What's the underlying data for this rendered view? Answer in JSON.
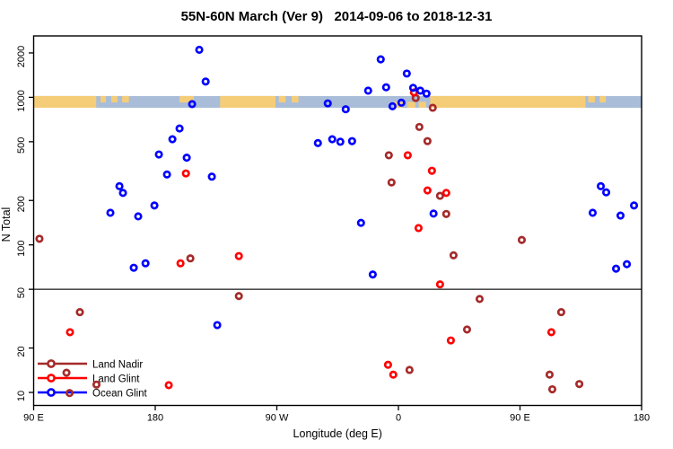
{
  "title": "55N-60N March (Ver 9)   2014-09-06 to 2018-12-31",
  "legend": {
    "items": [
      {
        "label": "Land Nadir",
        "color": "#A52A2A"
      },
      {
        "label": "Land Glint",
        "color": "#FF0000"
      },
      {
        "label": "Ocean Glint",
        "color": "#0000FF"
      }
    ]
  },
  "chart_data": {
    "type": "scatter",
    "title": "55N-60N March (Ver 9)   2014-09-06 to 2018-12-31",
    "xlabel": "Longitude (deg E)",
    "ylabel": "N Total",
    "x_axis": {
      "min": 90,
      "max": 540,
      "ticks": [
        90,
        180,
        270,
        360,
        450,
        540
      ],
      "tick_labels": [
        "90 E",
        "180",
        "90 W",
        "0",
        "90 E",
        "180"
      ],
      "note": "longitude axis wraps: 90E to 180 to 90W to 0 to 90E to 180"
    },
    "y_axis": {
      "scale": "log",
      "min": 8.2,
      "max": 2600,
      "ticks": [
        10,
        20,
        50,
        100,
        200,
        500,
        1000,
        2000
      ],
      "tick_labels": [
        "10",
        "20",
        "50",
        "100",
        "200",
        "500",
        "1000",
        "2000"
      ]
    },
    "reference_line_y": 50,
    "reference_line_color": "#4d4d4d",
    "map_band": {
      "description": "land/ocean strip for 55N-60N drawn across plot near N=900",
      "value_top": 1021,
      "value_bottom": 850,
      "land_color": "#F5CD79",
      "ocean_color": "#A9BDD9",
      "land_segments": [
        {
          "from": 90,
          "to": 136.3,
          "part": "full"
        },
        {
          "from": 139.5,
          "to": 143.5,
          "part": "top"
        },
        {
          "from": 147.5,
          "to": 152,
          "part": "top"
        },
        {
          "from": 155.5,
          "to": 160.5,
          "part": "top"
        },
        {
          "from": 198,
          "to": 208.5,
          "part": "top"
        },
        {
          "from": 228,
          "to": 269,
          "part": "full"
        },
        {
          "from": 271.5,
          "to": 276.5,
          "part": "top"
        },
        {
          "from": 281,
          "to": 286,
          "part": "top"
        },
        {
          "from": 356,
          "to": 363,
          "part": "bottom"
        },
        {
          "from": 366.5,
          "to": 372.5,
          "part": "bottom"
        },
        {
          "from": 375,
          "to": 380.5,
          "part": "bottom"
        },
        {
          "from": 383.5,
          "to": 498.5,
          "part": "full"
        },
        {
          "from": 500.5,
          "to": 505.5,
          "part": "top"
        },
        {
          "from": 509,
          "to": 513.5,
          "part": "top"
        }
      ]
    },
    "series": [
      {
        "name": "Land Nadir",
        "color": "#A52A2A",
        "points": [
          [
            94.3,
            110
          ],
          [
            206,
            81
          ],
          [
            241.9,
            45
          ],
          [
            124.2,
            35
          ],
          [
            114.3,
            13.6
          ],
          [
            136.5,
            11.3
          ],
          [
            116.6,
            9.9
          ],
          [
            372.8,
            990
          ],
          [
            385.4,
            850
          ],
          [
            375.5,
            630
          ],
          [
            381.5,
            505
          ],
          [
            352.9,
            405
          ],
          [
            354.9,
            265
          ],
          [
            390.8,
            215
          ],
          [
            395.4,
            162
          ],
          [
            368.2,
            14.2
          ],
          [
            451.3,
            108
          ],
          [
            400.8,
            85
          ],
          [
            420.1,
            43
          ],
          [
            480.5,
            35
          ],
          [
            410.8,
            26.7
          ],
          [
            471.9,
            13.2
          ],
          [
            493.9,
            11.4
          ],
          [
            473.9,
            10.5
          ]
        ]
      },
      {
        "name": "Land Glint",
        "color": "#FF0000",
        "points": [
          [
            202.7,
            305
          ],
          [
            371.5,
            1080
          ],
          [
            366.9,
            405
          ],
          [
            384.8,
            318
          ],
          [
            381.5,
            234
          ],
          [
            395.4,
            225
          ],
          [
            198.7,
            75
          ],
          [
            116.9,
            25.6
          ],
          [
            241.9,
            84
          ],
          [
            374.9,
            130
          ],
          [
            352.3,
            15.4
          ],
          [
            356.2,
            13.2
          ],
          [
            390.8,
            54
          ],
          [
            398.8,
            22.5
          ],
          [
            473.2,
            25.6
          ],
          [
            190,
            11.2
          ]
        ]
      },
      {
        "name": "Ocean Glint",
        "color": "#0000FF",
        "points": [
          [
            212.6,
            2100
          ],
          [
            217.3,
            1280
          ],
          [
            207.3,
            900
          ],
          [
            198,
            615
          ],
          [
            192.7,
            520
          ],
          [
            182.7,
            410
          ],
          [
            203.3,
            390
          ],
          [
            188.7,
            300
          ],
          [
            221.9,
            290
          ],
          [
            153.5,
            250
          ],
          [
            156.1,
            225
          ],
          [
            179.4,
            185
          ],
          [
            146.8,
            165
          ],
          [
            167.4,
            156
          ],
          [
            164.1,
            70
          ],
          [
            172.8,
            75
          ],
          [
            225.9,
            28.6
          ],
          [
            346.9,
            1810
          ],
          [
            366.2,
            1450
          ],
          [
            350.9,
            1170
          ],
          [
            337.6,
            1110
          ],
          [
            370.9,
            1160
          ],
          [
            376.2,
            1110
          ],
          [
            380.8,
            1060
          ],
          [
            307.7,
            910
          ],
          [
            321,
            830
          ],
          [
            355.6,
            870
          ],
          [
            362.2,
            920
          ],
          [
            300.4,
            490
          ],
          [
            311,
            520
          ],
          [
            317,
            500
          ],
          [
            325.7,
            505
          ],
          [
            386,
            163
          ],
          [
            332.3,
            141
          ],
          [
            341,
            63
          ],
          [
            509.8,
            250
          ],
          [
            513.8,
            227
          ],
          [
            503.8,
            165
          ],
          [
            524.4,
            158
          ],
          [
            534.4,
            185
          ],
          [
            521.1,
            69
          ],
          [
            529.1,
            74
          ]
        ]
      }
    ]
  }
}
